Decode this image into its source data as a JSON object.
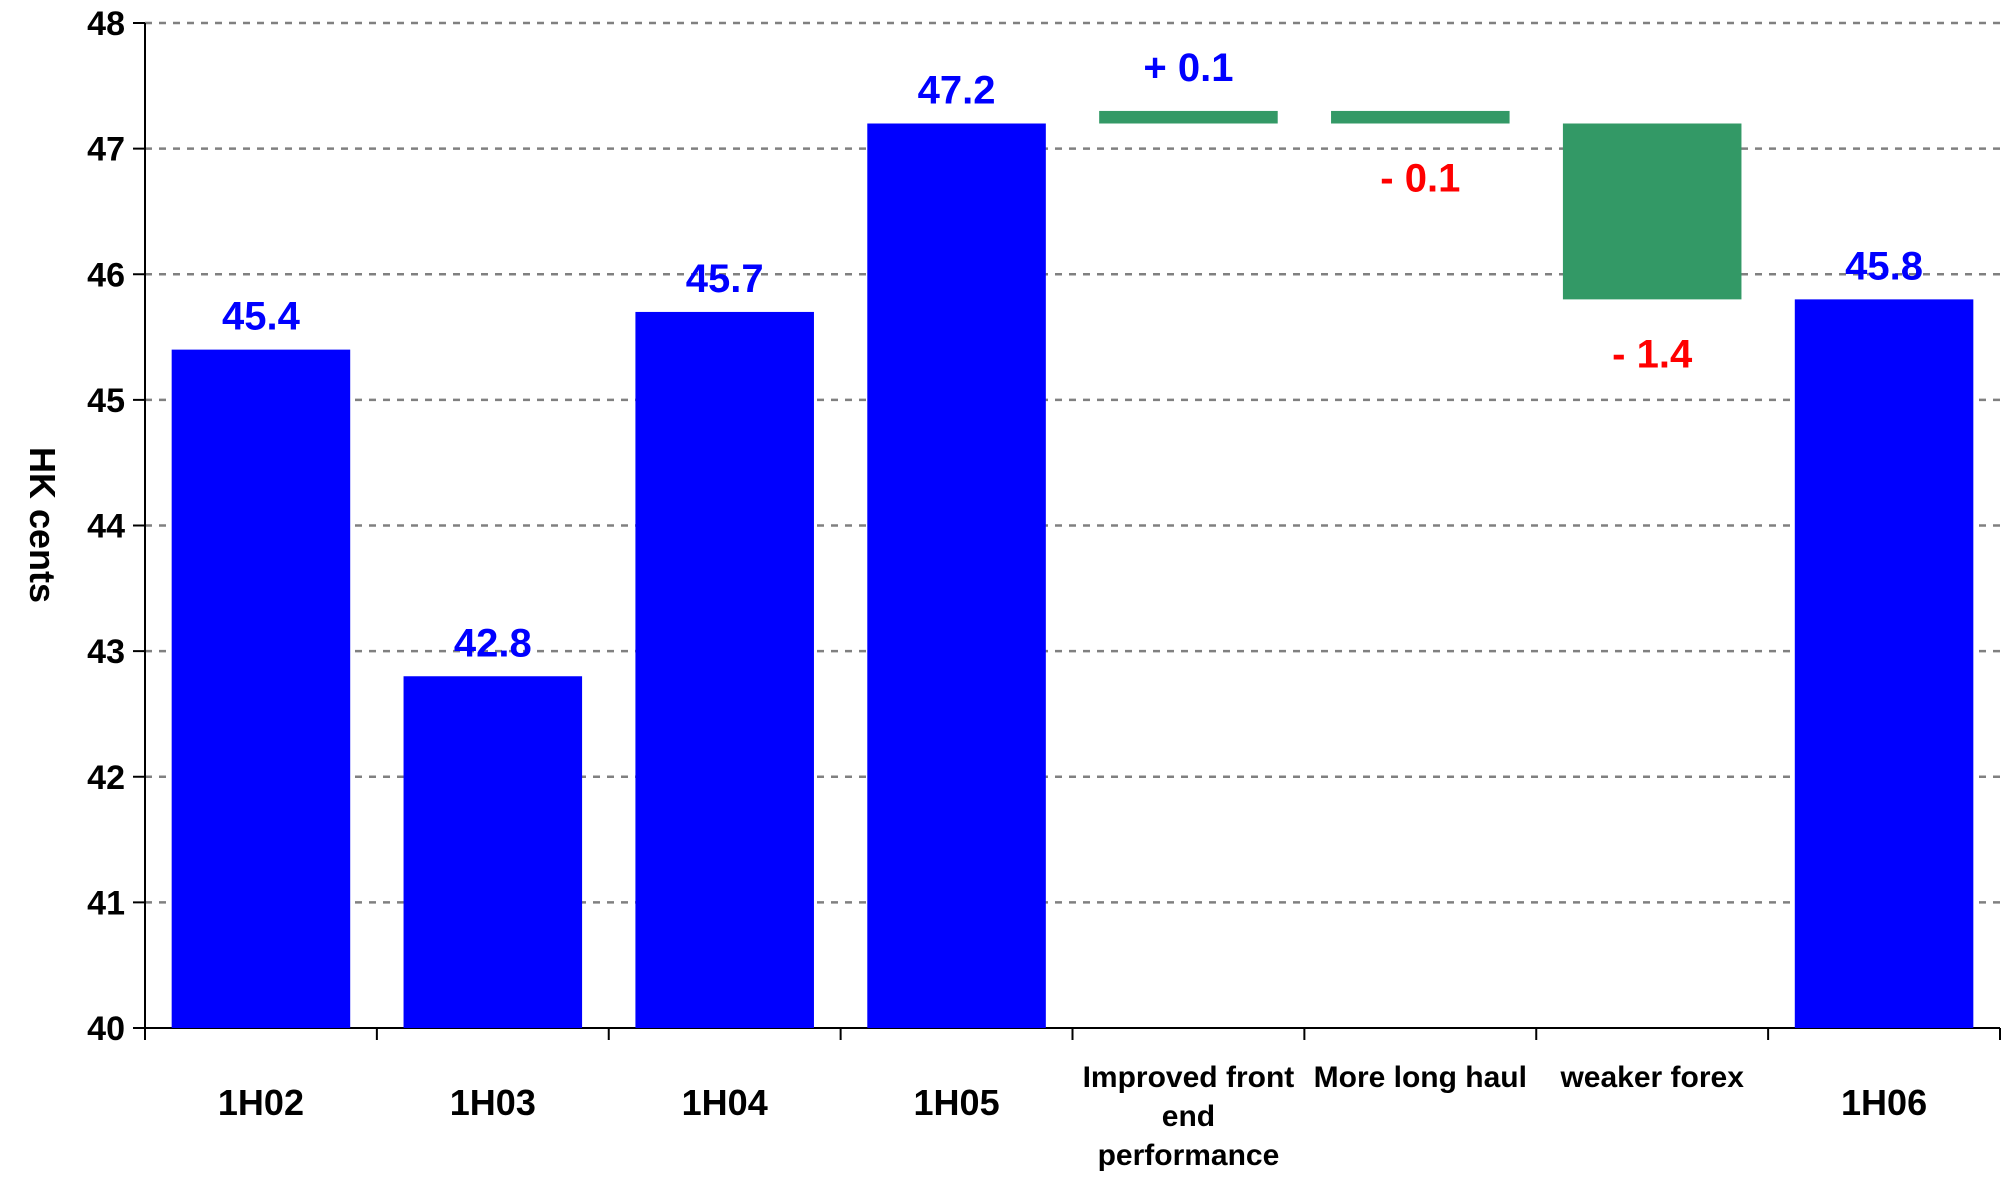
{
  "chart_data": {
    "type": "waterfall",
    "y_label": "HK cents",
    "categories": [
      "1H02",
      "1H03",
      "1H04",
      "1H05",
      "Improved front end performance",
      "More long haul",
      "weaker forex",
      "1H06"
    ],
    "values": [
      45.4,
      42.8,
      45.7,
      47.2,
      0.1,
      -0.1,
      -1.4,
      45.8
    ],
    "value_labels": [
      "45.4",
      "42.8",
      "45.7",
      "47.2",
      "+ 0.1",
      "- 0.1",
      "- 1.4",
      "45.8"
    ],
    "measure": [
      "absolute",
      "absolute",
      "absolute",
      "absolute",
      "relative",
      "relative",
      "relative",
      "absolute"
    ],
    "color": "#0000ff",
    "delta_color": "#339966",
    "label_color": "#0000ff",
    "negative_label_color": "#ff0000",
    "ylim": [
      40,
      48
    ],
    "yticks": [
      40,
      41,
      42,
      43,
      44,
      45,
      46,
      47,
      48
    ],
    "grid": true
  }
}
